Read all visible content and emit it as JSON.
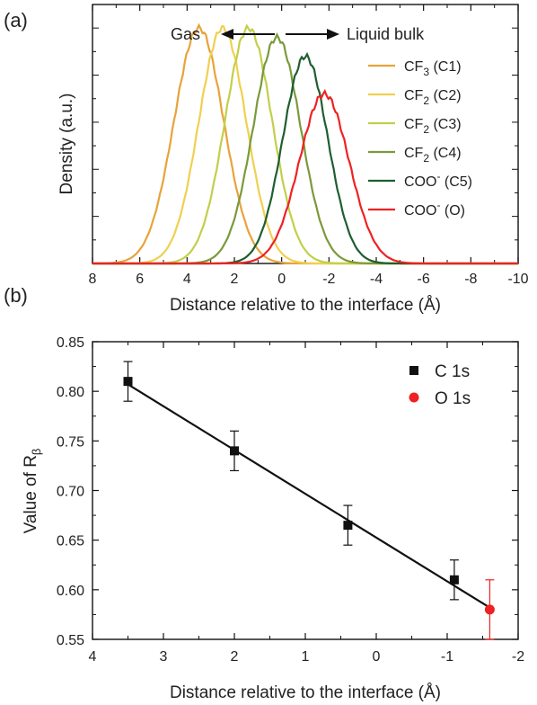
{
  "chart_data": [
    {
      "panel": "(a)",
      "type": "line",
      "xlabel": "Distance relative to the interface (Å)",
      "ylabel": "Density (a.u.)",
      "xlim": [
        8,
        -10
      ],
      "ylim": [
        0,
        1.1
      ],
      "x_ticks": [
        "8",
        "6",
        "4",
        "2",
        "0",
        "-2",
        "-4",
        "-6",
        "-8",
        "-10"
      ],
      "annotations": {
        "left": "Gas",
        "right": "Liquid bulk"
      },
      "legend_position": "right",
      "series": [
        {
          "base": "CF",
          "sub": "3",
          "sup": "",
          "tail": " (C1)",
          "color": "#e8a33a",
          "center": 3.5,
          "peak": 1.0,
          "width": 1.05
        },
        {
          "base": "CF",
          "sub": "2",
          "sup": "",
          "tail": " (C2)",
          "color": "#f0d050",
          "center": 2.5,
          "peak": 1.0,
          "width": 1.0
        },
        {
          "base": "CF",
          "sub": "2",
          "sup": "",
          "tail": " (C3)",
          "color": "#c2cf4a",
          "center": 1.4,
          "peak": 1.0,
          "width": 1.0
        },
        {
          "base": "CF",
          "sub": "2",
          "sup": "",
          "tail": " (C4)",
          "color": "#7a9a3a",
          "center": 0.2,
          "peak": 0.96,
          "width": 1.0
        },
        {
          "base": "COO",
          "sub": "",
          "sup": "-",
          "tail": " (C5)",
          "color": "#1e5e30",
          "center": -1.0,
          "peak": 0.88,
          "width": 0.95
        },
        {
          "base": "COO",
          "sub": "",
          "sup": "-",
          "tail": " (O)",
          "color": "#ee2222",
          "center": -1.8,
          "peak": 0.72,
          "width": 1.05
        }
      ]
    },
    {
      "panel": "(b)",
      "type": "scatter",
      "xlabel": "Distance relative to the interface (Å)",
      "ylabel_base": "Value of R",
      "ylabel_sub": "β",
      "xlim": [
        4,
        -2
      ],
      "ylim": [
        0.55,
        0.85
      ],
      "x_ticks": [
        "4",
        "3",
        "2",
        "1",
        "0",
        "-1",
        "-2"
      ],
      "y_ticks": [
        "0.55",
        "0.60",
        "0.65",
        "0.70",
        "0.75",
        "0.80",
        "0.85"
      ],
      "legend_position": "top-right",
      "series": [
        {
          "name": "C 1s",
          "color": "#111111",
          "marker": "square",
          "x": [
            3.5,
            2.0,
            0.4,
            -1.1
          ],
          "y": [
            0.81,
            0.74,
            0.665,
            0.61
          ],
          "err": [
            0.02,
            0.02,
            0.02,
            0.02
          ]
        },
        {
          "name": "O 1s",
          "color": "#ee2222",
          "marker": "circle",
          "x": [
            -1.6
          ],
          "y": [
            0.58
          ],
          "err": [
            0.03
          ]
        }
      ],
      "fit_line": {
        "x": [
          3.5,
          -1.6
        ],
        "y": [
          0.807,
          0.582
        ]
      }
    }
  ]
}
